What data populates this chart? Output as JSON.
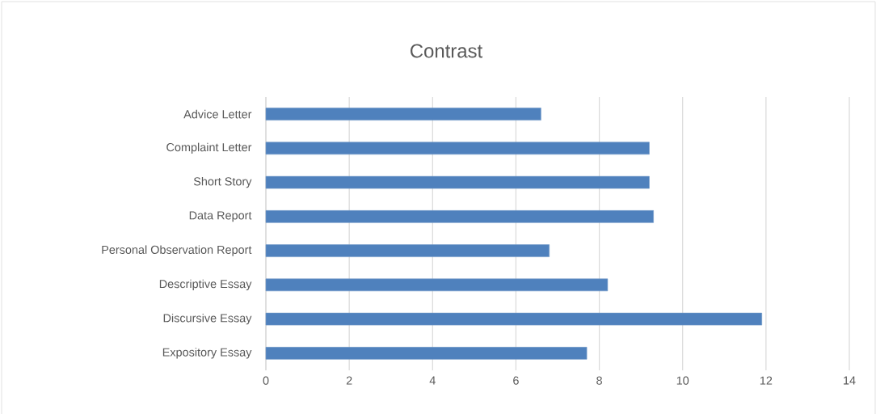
{
  "chart_data": {
    "type": "bar",
    "orientation": "horizontal",
    "title": "Contrast",
    "categories": [
      "Advice Letter",
      "Complaint Letter",
      "Short Story",
      "Data Report",
      "Personal Observation Report",
      "Descriptive Essay",
      "Discursive Essay",
      "Expository Essay"
    ],
    "values": [
      6.6,
      9.2,
      9.2,
      9.3,
      6.8,
      8.2,
      11.9,
      7.7
    ],
    "color": "#4f81bd",
    "xlim": [
      0,
      14
    ],
    "xticks": [
      0,
      2,
      4,
      6,
      8,
      10,
      12,
      14
    ],
    "grid": "x"
  }
}
